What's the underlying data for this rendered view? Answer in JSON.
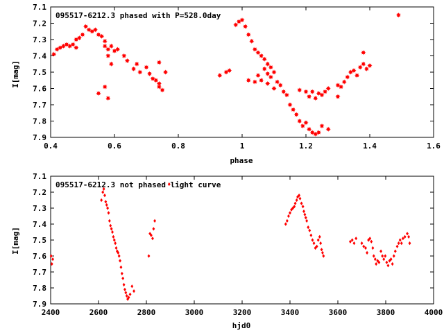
{
  "colors": {
    "points": "#ff0000",
    "axes": "#000000",
    "background": "#ffffff"
  },
  "chart_data": [
    {
      "type": "scatter",
      "title": "095517-6212.3 phased with P=528.0day",
      "xlabel": "phase",
      "ylabel": "I[mag]",
      "xlim": [
        0.4,
        1.6
      ],
      "ylim": [
        7.9,
        7.1
      ],
      "y_inverted": true,
      "grid": false,
      "marker": "star",
      "xticks": [
        "0.4",
        "0.6",
        "0.8",
        "1",
        "1.2",
        "1.4",
        "1.6"
      ],
      "yticks": [
        "7.1",
        "7.2",
        "7.3",
        "7.4",
        "7.5",
        "7.6",
        "7.7",
        "7.8",
        "7.9"
      ],
      "series": [
        {
          "points": [
            [
              0.41,
              7.39
            ],
            [
              0.42,
              7.36
            ],
            [
              0.43,
              7.35
            ],
            [
              0.44,
              7.34
            ],
            [
              0.45,
              7.33
            ],
            [
              0.46,
              7.34
            ],
            [
              0.47,
              7.33
            ],
            [
              0.48,
              7.35
            ],
            [
              0.48,
              7.3
            ],
            [
              0.49,
              7.29
            ],
            [
              0.5,
              7.27
            ],
            [
              0.51,
              7.22
            ],
            [
              0.52,
              7.24
            ],
            [
              0.53,
              7.25
            ],
            [
              0.54,
              7.24
            ],
            [
              0.55,
              7.27
            ],
            [
              0.56,
              7.28
            ],
            [
              0.57,
              7.31
            ],
            [
              0.57,
              7.34
            ],
            [
              0.58,
              7.36
            ],
            [
              0.58,
              7.4
            ],
            [
              0.59,
              7.34
            ],
            [
              0.6,
              7.37
            ],
            [
              0.61,
              7.36
            ],
            [
              0.59,
              7.45
            ],
            [
              0.63,
              7.4
            ],
            [
              0.64,
              7.43
            ],
            [
              0.55,
              7.63
            ],
            [
              0.57,
              7.59
            ],
            [
              0.58,
              7.66
            ],
            [
              0.66,
              7.48
            ],
            [
              0.68,
              7.5
            ],
            [
              0.67,
              7.45
            ],
            [
              0.7,
              7.47
            ],
            [
              0.71,
              7.51
            ],
            [
              0.72,
              7.54
            ],
            [
              0.73,
              7.55
            ],
            [
              0.74,
              7.57
            ],
            [
              0.74,
              7.59
            ],
            [
              0.75,
              7.61
            ],
            [
              0.74,
              7.44
            ],
            [
              0.76,
              7.5
            ],
            [
              0.93,
              7.52
            ],
            [
              0.95,
              7.5
            ],
            [
              0.96,
              7.49
            ],
            [
              0.98,
              7.21
            ],
            [
              0.99,
              7.19
            ],
            [
              1.0,
              7.18
            ],
            [
              1.01,
              7.22
            ],
            [
              1.02,
              7.27
            ],
            [
              1.03,
              7.31
            ],
            [
              1.04,
              7.36
            ],
            [
              1.05,
              7.38
            ],
            [
              1.06,
              7.4
            ],
            [
              1.07,
              7.42
            ],
            [
              1.08,
              7.45
            ],
            [
              1.09,
              7.47
            ],
            [
              1.1,
              7.5
            ],
            [
              1.07,
              7.48
            ],
            [
              1.08,
              7.51
            ],
            [
              1.09,
              7.53
            ],
            [
              1.11,
              7.56
            ],
            [
              1.12,
              7.58
            ],
            [
              1.13,
              7.62
            ],
            [
              1.14,
              7.64
            ],
            [
              1.15,
              7.7
            ],
            [
              1.16,
              7.73
            ],
            [
              1.17,
              7.76
            ],
            [
              1.18,
              7.8
            ],
            [
              1.19,
              7.83
            ],
            [
              1.2,
              7.81
            ],
            [
              1.21,
              7.85
            ],
            [
              1.22,
              7.87
            ],
            [
              1.23,
              7.88
            ],
            [
              1.24,
              7.87
            ],
            [
              1.25,
              7.83
            ],
            [
              1.27,
              7.85
            ],
            [
              1.02,
              7.55
            ],
            [
              1.04,
              7.56
            ],
            [
              1.05,
              7.52
            ],
            [
              1.06,
              7.55
            ],
            [
              1.08,
              7.57
            ],
            [
              1.1,
              7.6
            ],
            [
              1.18,
              7.61
            ],
            [
              1.2,
              7.62
            ],
            [
              1.21,
              7.65
            ],
            [
              1.22,
              7.62
            ],
            [
              1.23,
              7.66
            ],
            [
              1.24,
              7.63
            ],
            [
              1.25,
              7.64
            ],
            [
              1.26,
              7.62
            ],
            [
              1.27,
              7.6
            ],
            [
              1.3,
              7.65
            ],
            [
              1.31,
              7.59
            ],
            [
              1.32,
              7.56
            ],
            [
              1.33,
              7.53
            ],
            [
              1.34,
              7.5
            ],
            [
              1.36,
              7.52
            ],
            [
              1.37,
              7.47
            ],
            [
              1.38,
              7.45
            ],
            [
              1.39,
              7.48
            ],
            [
              1.4,
              7.46
            ],
            [
              1.38,
              7.38
            ],
            [
              1.49,
              7.15
            ],
            [
              1.3,
              7.58
            ],
            [
              1.35,
              7.49
            ]
          ]
        }
      ]
    },
    {
      "type": "scatter",
      "title": "095517-6212.3 not phased light curve",
      "xlabel": "hjd0",
      "ylabel": "I[mag]",
      "xlim": [
        2400,
        4000
      ],
      "ylim": [
        7.9,
        7.1
      ],
      "y_inverted": true,
      "grid": false,
      "marker": "diamond",
      "xticks": [
        "2400",
        "2600",
        "2800",
        "3000",
        "3200",
        "3400",
        "3600",
        "3800",
        "4000"
      ],
      "yticks": [
        "7.1",
        "7.2",
        "7.3",
        "7.4",
        "7.5",
        "7.6",
        "7.7",
        "7.8",
        "7.9"
      ],
      "series": [
        {
          "points": [
            [
              2402,
              7.6
            ],
            [
              2405,
              7.65
            ],
            [
              2409,
              7.62
            ],
            [
              2612,
              7.25
            ],
            [
              2618,
              7.2
            ],
            [
              2622,
              7.18
            ],
            [
              2626,
              7.22
            ],
            [
              2630,
              7.26
            ],
            [
              2634,
              7.28
            ],
            [
              2638,
              7.3
            ],
            [
              2642,
              7.33
            ],
            [
              2646,
              7.38
            ],
            [
              2650,
              7.41
            ],
            [
              2654,
              7.43
            ],
            [
              2658,
              7.45
            ],
            [
              2662,
              7.48
            ],
            [
              2666,
              7.5
            ],
            [
              2670,
              7.52
            ],
            [
              2674,
              7.55
            ],
            [
              2678,
              7.57
            ],
            [
              2682,
              7.58
            ],
            [
              2686,
              7.6
            ],
            [
              2690,
              7.63
            ],
            [
              2694,
              7.67
            ],
            [
              2698,
              7.71
            ],
            [
              2702,
              7.74
            ],
            [
              2706,
              7.78
            ],
            [
              2710,
              7.81
            ],
            [
              2714,
              7.83
            ],
            [
              2718,
              7.85
            ],
            [
              2722,
              7.87
            ],
            [
              2726,
              7.86
            ],
            [
              2732,
              7.84
            ],
            [
              2740,
              7.79
            ],
            [
              2748,
              7.82
            ],
            [
              2810,
              7.6
            ],
            [
              2815,
              7.46
            ],
            [
              2820,
              7.47
            ],
            [
              2826,
              7.49
            ],
            [
              2830,
              7.43
            ],
            [
              2835,
              7.38
            ],
            [
              2895,
              7.15
            ],
            [
              3382,
              7.4
            ],
            [
              3388,
              7.38
            ],
            [
              3394,
              7.35
            ],
            [
              3400,
              7.33
            ],
            [
              3406,
              7.31
            ],
            [
              3412,
              7.3
            ],
            [
              3418,
              7.29
            ],
            [
              3422,
              7.27
            ],
            [
              3428,
              7.25
            ],
            [
              3432,
              7.23
            ],
            [
              3438,
              7.22
            ],
            [
              3442,
              7.24
            ],
            [
              3448,
              7.27
            ],
            [
              3454,
              7.29
            ],
            [
              3458,
              7.32
            ],
            [
              3462,
              7.34
            ],
            [
              3466,
              7.36
            ],
            [
              3470,
              7.38
            ],
            [
              3476,
              7.42
            ],
            [
              3482,
              7.44
            ],
            [
              3488,
              7.47
            ],
            [
              3494,
              7.5
            ],
            [
              3500,
              7.52
            ],
            [
              3506,
              7.55
            ],
            [
              3512,
              7.54
            ],
            [
              3518,
              7.5
            ],
            [
              3524,
              7.48
            ],
            [
              3528,
              7.52
            ],
            [
              3532,
              7.56
            ],
            [
              3536,
              7.58
            ],
            [
              3540,
              7.6
            ],
            [
              3652,
              7.51
            ],
            [
              3660,
              7.5
            ],
            [
              3668,
              7.52
            ],
            [
              3676,
              7.49
            ],
            [
              3700,
              7.52
            ],
            [
              3708,
              7.54
            ],
            [
              3716,
              7.55
            ],
            [
              3722,
              7.58
            ],
            [
              3728,
              7.5
            ],
            [
              3734,
              7.49
            ],
            [
              3740,
              7.51
            ],
            [
              3746,
              7.55
            ],
            [
              3750,
              7.6
            ],
            [
              3756,
              7.62
            ],
            [
              3760,
              7.65
            ],
            [
              3766,
              7.63
            ],
            [
              3772,
              7.64
            ],
            [
              3780,
              7.57
            ],
            [
              3786,
              7.6
            ],
            [
              3792,
              7.62
            ],
            [
              3798,
              7.6
            ],
            [
              3804,
              7.64
            ],
            [
              3810,
              7.66
            ],
            [
              3816,
              7.63
            ],
            [
              3822,
              7.62
            ],
            [
              3828,
              7.65
            ],
            [
              3834,
              7.6
            ],
            [
              3840,
              7.57
            ],
            [
              3848,
              7.54
            ],
            [
              3854,
              7.52
            ],
            [
              3860,
              7.5
            ],
            [
              3866,
              7.52
            ],
            [
              3872,
              7.49
            ],
            [
              3880,
              7.48
            ],
            [
              3890,
              7.46
            ],
            [
              3896,
              7.48
            ],
            [
              3900,
              7.52
            ]
          ]
        }
      ]
    }
  ]
}
